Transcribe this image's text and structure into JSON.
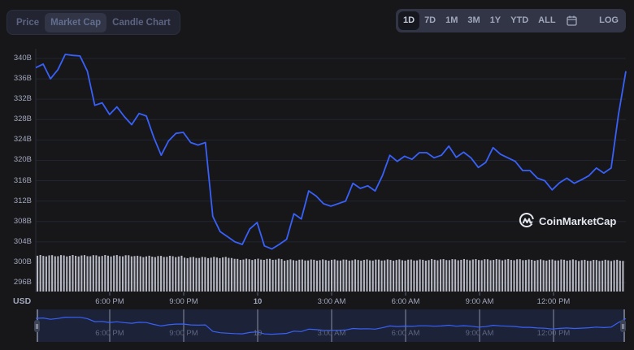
{
  "tabs": [
    {
      "label": "Price",
      "active": false
    },
    {
      "label": "Market Cap",
      "active": true
    },
    {
      "label": "Candle Chart",
      "active": false
    }
  ],
  "ranges": [
    {
      "label": "1D",
      "active": true
    },
    {
      "label": "7D",
      "active": false
    },
    {
      "label": "1M",
      "active": false
    },
    {
      "label": "3M",
      "active": false
    },
    {
      "label": "1Y",
      "active": false
    },
    {
      "label": "YTD",
      "active": false
    },
    {
      "label": "ALL",
      "active": false
    }
  ],
  "calendar_icon": "calendar-icon",
  "log_label": "LOG",
  "currency_label": "USD",
  "watermark": "CoinMarketCap",
  "colors": {
    "line": "#3861fb",
    "volume": "#c3c6d1",
    "grid": "#222531",
    "navigator_bg": "#1c2237",
    "background": "#17171a"
  },
  "chart_data": {
    "type": "line",
    "title": "Market Cap (1D)",
    "xlabel": "",
    "ylabel": "USD",
    "ylim": [
      294,
      342
    ],
    "yticks": [
      "340B",
      "336B",
      "332B",
      "328B",
      "324B",
      "320B",
      "316B",
      "312B",
      "308B",
      "304B",
      "300B",
      "296B"
    ],
    "xticks": [
      "6:00 PM",
      "9:00 PM",
      "10",
      "3:00 AM",
      "6:00 AM",
      "9:00 AM",
      "12:00 PM"
    ],
    "grid": true,
    "legend": null,
    "series": [
      {
        "name": "Market Cap (B USD)",
        "x_hours_from_start": [
          0,
          0.3,
          0.6,
          0.9,
          1.2,
          1.5,
          1.8,
          2.1,
          2.4,
          2.7,
          3.0,
          3.3,
          3.6,
          3.9,
          4.2,
          4.5,
          4.8,
          5.1,
          5.4,
          5.7,
          6.0,
          6.3,
          6.6,
          6.9,
          7.2,
          7.5,
          7.8,
          8.1,
          8.4,
          8.7,
          9.0,
          9.3,
          9.6,
          9.9,
          10.2,
          10.5,
          10.8,
          11.1,
          11.4,
          11.7,
          12.0,
          12.3,
          12.6,
          12.9,
          13.2,
          13.5,
          13.8,
          14.1,
          14.4,
          14.7,
          15.0,
          15.3,
          15.6,
          15.9,
          16.2,
          16.5,
          16.8,
          17.1,
          17.4,
          17.7,
          18.0,
          18.3,
          18.6,
          18.9,
          19.2,
          19.5,
          19.8,
          20.1,
          20.4,
          20.7,
          21.0,
          21.3,
          21.6,
          21.9,
          22.2,
          22.5,
          22.8,
          23.1,
          23.4,
          23.7,
          24.0
        ],
        "values": [
          338.2,
          338.9,
          336.0,
          337.8,
          340.8,
          340.6,
          340.5,
          337.5,
          330.8,
          331.3,
          329.0,
          330.5,
          328.6,
          327.0,
          329.2,
          328.7,
          324.5,
          321.0,
          323.8,
          325.3,
          325.5,
          323.5,
          323.0,
          323.5,
          309.0,
          306.0,
          305.0,
          304.0,
          303.5,
          306.5,
          307.8,
          303.2,
          302.6,
          303.5,
          304.5,
          309.5,
          308.5,
          314.0,
          313.0,
          311.5,
          311.0,
          311.5,
          312.0,
          315.5,
          314.5,
          315.0,
          314.0,
          317.0,
          321.0,
          319.8,
          320.8,
          320.2,
          321.5,
          321.5,
          320.5,
          321.0,
          322.8,
          320.6,
          321.6,
          320.5,
          318.6,
          319.6,
          322.5,
          321.2,
          320.5,
          319.8,
          318.0,
          318.0,
          316.5,
          316.0,
          314.2,
          315.6,
          316.5,
          315.5,
          316.2,
          317.0,
          318.5,
          317.5,
          318.5,
          329.0,
          337.5
        ]
      },
      {
        "name": "Volume (relative)",
        "note": "bar heights roughly constant, slightly taller in first third",
        "values": [
          1.0,
          1.0,
          0.98,
          0.95,
          0.9,
          0.88,
          0.88,
          0.88,
          0.89,
          0.89,
          0.88,
          0.87
        ]
      }
    ]
  }
}
